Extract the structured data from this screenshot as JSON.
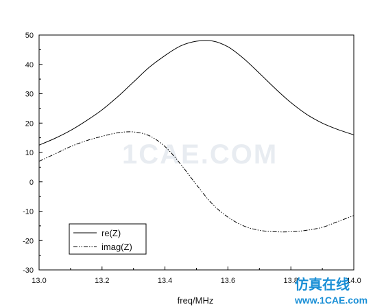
{
  "chart_data": {
    "type": "line",
    "title": "",
    "xlabel": "freq/MHz",
    "ylabel": "",
    "xlim": [
      13.0,
      14.0
    ],
    "ylim": [
      -30,
      50
    ],
    "xticks": [
      "13.0",
      "13.2",
      "13.4",
      "13.6",
      "13.8",
      "14.0"
    ],
    "yticks": [
      "-30",
      "-20",
      "-10",
      "0",
      "10",
      "20",
      "30",
      "40",
      "50"
    ],
    "grid": false,
    "legend_position": "bottom-left",
    "series": [
      {
        "name": "re(Z)",
        "style": "solid",
        "x": [
          13.0,
          13.05,
          13.1,
          13.15,
          13.2,
          13.25,
          13.3,
          13.35,
          13.4,
          13.45,
          13.5,
          13.55,
          13.6,
          13.65,
          13.7,
          13.75,
          13.8,
          13.85,
          13.9,
          13.95,
          14.0
        ],
        "y": [
          12.5,
          14.8,
          17.5,
          20.8,
          24.5,
          29.0,
          34.0,
          39.0,
          43.0,
          46.3,
          47.9,
          48.0,
          46.0,
          42.0,
          37.0,
          31.8,
          27.0,
          23.0,
          20.0,
          17.8,
          16.0
        ]
      },
      {
        "name": "imag(Z)",
        "style": "dash-dot-dot",
        "x": [
          13.0,
          13.05,
          13.1,
          13.15,
          13.2,
          13.25,
          13.3,
          13.35,
          13.4,
          13.45,
          13.5,
          13.55,
          13.6,
          13.65,
          13.7,
          13.75,
          13.8,
          13.85,
          13.9,
          13.95,
          14.0
        ],
        "y": [
          7.0,
          9.5,
          12.0,
          14.0,
          15.5,
          16.7,
          17.0,
          15.7,
          12.0,
          6.0,
          -1.0,
          -7.5,
          -12.0,
          -15.0,
          -16.5,
          -17.0,
          -17.0,
          -16.5,
          -15.5,
          -13.5,
          -11.5
        ]
      }
    ]
  },
  "watermark": {
    "center_text": "1CAE.COM",
    "brand_cn": "仿真在线",
    "brand_url": "www.1CAE.com"
  }
}
